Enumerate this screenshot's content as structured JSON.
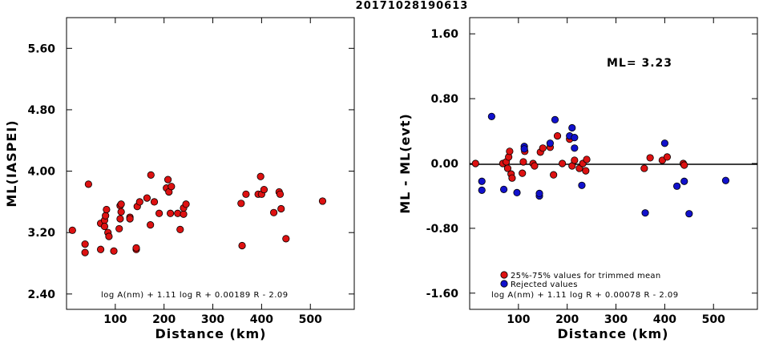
{
  "title": "20171028190613",
  "chart_data": [
    {
      "type": "scatter",
      "xlabel": "Distance (km)",
      "ylabel": "ML(IASPEI)",
      "xlim": [
        0,
        590
      ],
      "ylim": [
        2.2,
        6.0
      ],
      "xticks": [
        100,
        200,
        300,
        400,
        500
      ],
      "yticks": [
        "2.40",
        "3.20",
        "4.00",
        "4.80",
        "5.60"
      ],
      "formula": "log A(nm) + 1.11 log R + 0.00189 R - 2.09",
      "marker_color": "#dd1111",
      "points": [
        [
          12,
          3.23
        ],
        [
          38,
          3.05
        ],
        [
          38,
          2.94
        ],
        [
          45,
          3.83
        ],
        [
          70,
          3.32
        ],
        [
          70,
          2.98
        ],
        [
          78,
          3.36
        ],
        [
          78,
          3.28
        ],
        [
          80,
          3.42
        ],
        [
          82,
          3.5
        ],
        [
          85,
          3.2
        ],
        [
          87,
          3.15
        ],
        [
          97,
          2.96
        ],
        [
          108,
          3.25
        ],
        [
          110,
          3.38
        ],
        [
          110,
          3.55
        ],
        [
          112,
          3.57
        ],
        [
          112,
          3.47
        ],
        [
          130,
          3.4
        ],
        [
          130,
          3.38
        ],
        [
          143,
          2.98
        ],
        [
          143,
          3.0
        ],
        [
          145,
          3.54
        ],
        [
          150,
          3.6
        ],
        [
          165,
          3.65
        ],
        [
          172,
          3.3
        ],
        [
          173,
          3.95
        ],
        [
          180,
          3.6
        ],
        [
          190,
          3.45
        ],
        [
          205,
          3.78
        ],
        [
          208,
          3.89
        ],
        [
          210,
          3.73
        ],
        [
          213,
          3.45
        ],
        [
          215,
          3.8
        ],
        [
          228,
          3.45
        ],
        [
          233,
          3.24
        ],
        [
          240,
          3.44
        ],
        [
          240,
          3.52
        ],
        [
          245,
          3.57
        ],
        [
          358,
          3.58
        ],
        [
          360,
          3.03
        ],
        [
          368,
          3.7
        ],
        [
          393,
          3.7
        ],
        [
          398,
          3.93
        ],
        [
          400,
          3.7
        ],
        [
          405,
          3.76
        ],
        [
          425,
          3.46
        ],
        [
          436,
          3.73
        ],
        [
          438,
          3.7
        ],
        [
          440,
          3.51
        ],
        [
          450,
          3.12
        ],
        [
          525,
          3.61
        ]
      ]
    },
    {
      "type": "scatter",
      "xlabel": "Distance (km)",
      "ylabel": "ML - ML(evt)",
      "xlim": [
        0,
        590
      ],
      "ylim": [
        -1.8,
        1.8
      ],
      "xticks": [
        100,
        200,
        300,
        400,
        500
      ],
      "yticks": [
        "-1.60",
        "-0.80",
        "0.00",
        "0.80",
        "1.60"
      ],
      "annotation": "ML= 3.23",
      "formula": "log A(nm) + 1.11 log R + 0.00078 R - 2.09",
      "legend": {
        "position": "bottom-left",
        "entries": [
          {
            "label": "25%-75% values for trimmed mean",
            "color": "#dd1111"
          },
          {
            "label": "Rejected values",
            "color": "#1111cc"
          }
        ]
      },
      "points_trimmed": [
        [
          12,
          0.0
        ],
        [
          68,
          0.0
        ],
        [
          75,
          0.02
        ],
        [
          78,
          -0.06
        ],
        [
          80,
          0.08
        ],
        [
          82,
          0.15
        ],
        [
          85,
          -0.13
        ],
        [
          87,
          -0.18
        ],
        [
          108,
          -0.12
        ],
        [
          110,
          0.02
        ],
        [
          113,
          0.15
        ],
        [
          130,
          0.0
        ],
        [
          133,
          -0.03
        ],
        [
          145,
          0.14
        ],
        [
          150,
          0.19
        ],
        [
          165,
          0.2
        ],
        [
          172,
          -0.14
        ],
        [
          180,
          0.34
        ],
        [
          190,
          0.0
        ],
        [
          205,
          0.3
        ],
        [
          210,
          -0.03
        ],
        [
          215,
          0.04
        ],
        [
          225,
          -0.06
        ],
        [
          232,
          0.0
        ],
        [
          238,
          -0.09
        ],
        [
          240,
          0.05
        ],
        [
          358,
          -0.06
        ],
        [
          370,
          0.07
        ],
        [
          395,
          0.04
        ],
        [
          405,
          0.08
        ],
        [
          438,
          0.0
        ],
        [
          440,
          -0.02
        ]
      ],
      "points_rejected": [
        [
          25,
          -0.22
        ],
        [
          25,
          -0.33
        ],
        [
          45,
          0.58
        ],
        [
          70,
          -0.32
        ],
        [
          97,
          -0.36
        ],
        [
          112,
          0.21
        ],
        [
          112,
          0.18
        ],
        [
          143,
          -0.4
        ],
        [
          143,
          -0.37
        ],
        [
          165,
          0.25
        ],
        [
          175,
          0.54
        ],
        [
          205,
          0.34
        ],
        [
          210,
          0.44
        ],
        [
          215,
          0.19
        ],
        [
          215,
          0.32
        ],
        [
          230,
          -0.27
        ],
        [
          360,
          -0.61
        ],
        [
          400,
          0.25
        ],
        [
          425,
          -0.28
        ],
        [
          440,
          -0.22
        ],
        [
          450,
          -0.62
        ],
        [
          525,
          -0.21
        ]
      ]
    }
  ]
}
